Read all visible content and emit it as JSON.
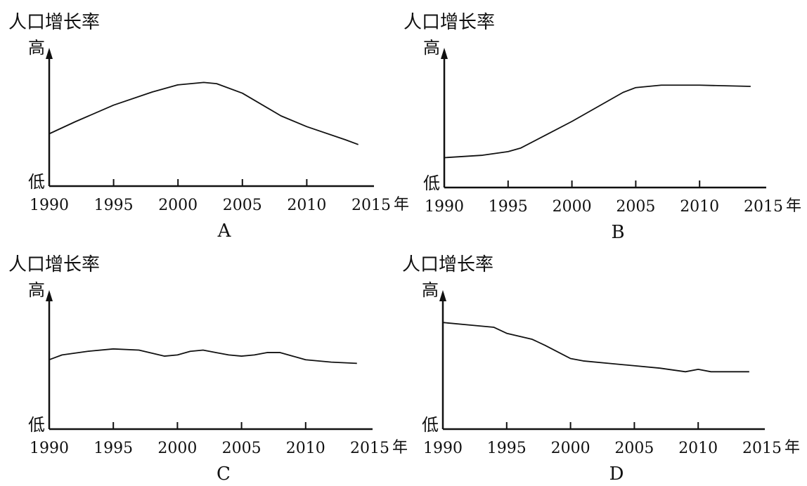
{
  "chart_data": [
    {
      "type": "line",
      "panel_label": "A",
      "ylabel": "人口增长率",
      "y_high_label": "高",
      "y_low_label": "低",
      "x_unit": "年",
      "x_ticks": [
        "1990",
        "1995",
        "2000",
        "2005",
        "2010",
        "2015"
      ],
      "xlim": [
        1990,
        2015
      ],
      "ylim": [
        0,
        10
      ],
      "series": [
        {
          "x": [
            1990,
            1992,
            1995,
            1998,
            2000,
            2002,
            2003,
            2005,
            2008,
            2010,
            2013,
            2014
          ],
          "y": [
            3.5,
            4.5,
            5.9,
            7.0,
            7.6,
            7.8,
            7.7,
            6.9,
            5.0,
            4.1,
            3.0,
            2.6
          ]
        }
      ]
    },
    {
      "type": "line",
      "panel_label": "B",
      "ylabel": "人口增长率",
      "y_high_label": "高",
      "y_low_label": "低",
      "x_unit": "年",
      "x_ticks": [
        "1990",
        "1995",
        "2000",
        "2005",
        "2010",
        "2015"
      ],
      "xlim": [
        1990,
        2015
      ],
      "ylim": [
        0,
        10
      ],
      "series": [
        {
          "x": [
            1990,
            1993,
            1995,
            1996,
            1998,
            2000,
            2002,
            2004,
            2005,
            2007,
            2010,
            2014
          ],
          "y": [
            1.6,
            1.8,
            2.1,
            2.4,
            3.5,
            4.6,
            5.8,
            7.0,
            7.4,
            7.6,
            7.6,
            7.5
          ]
        }
      ]
    },
    {
      "type": "line",
      "panel_label": "C",
      "ylabel": "人口增长率",
      "y_high_label": "高",
      "y_low_label": "低",
      "x_unit": "年",
      "x_ticks": [
        "1990",
        "1995",
        "2000",
        "2005",
        "2010",
        "2015"
      ],
      "xlim": [
        1990,
        2015
      ],
      "ylim": [
        0,
        10
      ],
      "series": [
        {
          "x": [
            1990,
            1991,
            1993,
            1995,
            1997,
            1999,
            2000,
            2001,
            2002,
            2003,
            2004,
            2005,
            2006,
            2007,
            2008,
            2009,
            2010,
            2012,
            2014
          ],
          "y": [
            4.9,
            5.3,
            5.6,
            5.8,
            5.7,
            5.2,
            5.3,
            5.6,
            5.7,
            5.5,
            5.3,
            5.2,
            5.3,
            5.5,
            5.5,
            5.2,
            4.9,
            4.7,
            4.6
          ]
        }
      ]
    },
    {
      "type": "line",
      "panel_label": "D",
      "ylabel": "人口增长率",
      "y_high_label": "高",
      "y_low_label": "低",
      "x_unit": "年",
      "x_ticks": [
        "1990",
        "1995",
        "2000",
        "2005",
        "2010",
        "2015"
      ],
      "xlim": [
        1990,
        2015
      ],
      "ylim": [
        0,
        10
      ],
      "series": [
        {
          "x": [
            1990,
            1992,
            1994,
            1995,
            1997,
            1998,
            2000,
            2001,
            2003,
            2005,
            2007,
            2009,
            2010,
            2011,
            2012,
            2014
          ],
          "y": [
            8.0,
            7.8,
            7.6,
            7.1,
            6.6,
            6.1,
            5.0,
            4.8,
            4.6,
            4.4,
            4.2,
            3.9,
            4.1,
            3.9,
            3.9,
            3.9
          ]
        }
      ]
    }
  ]
}
